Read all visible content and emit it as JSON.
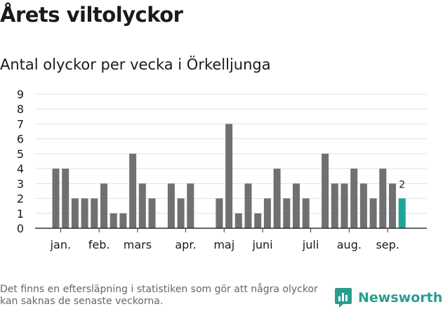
{
  "title": "Årets viltolyckor",
  "subtitle": "Antal olyckor per vecka i Örkelljunga",
  "footnote": "Det finns en eftersläpning i statistiken som gör att några olyckor kan saknas de senaste veckorna.",
  "brand": {
    "name": "Newsworthy",
    "icon": "newsworthy-logo-icon"
  },
  "colors": {
    "bar": "#707073",
    "highlight": "#1ea596",
    "grid": "#e0e0e0",
    "axis": "#333333",
    "text": "#1a1a1a"
  },
  "chart_data": {
    "type": "bar",
    "title": "Antal olyckor per vecka i Örkelljunga",
    "xlabel": "",
    "ylabel": "",
    "ylim": [
      0,
      9
    ],
    "yticks": [
      0,
      1,
      2,
      3,
      4,
      5,
      6,
      7,
      8,
      9
    ],
    "grid": true,
    "x": [
      2,
      3,
      4,
      5,
      6,
      7,
      8,
      9,
      10,
      11,
      12,
      13,
      14,
      15,
      16,
      17,
      18,
      19,
      20,
      21,
      22,
      23,
      24,
      25,
      26,
      27,
      28,
      29,
      30,
      31,
      32,
      33,
      34,
      35,
      36,
      37,
      38
    ],
    "values": [
      4,
      4,
      2,
      2,
      2,
      3,
      1,
      1,
      5,
      3,
      2,
      0,
      3,
      2,
      3,
      0,
      0,
      2,
      7,
      1,
      3,
      1,
      2,
      4,
      2,
      3,
      2,
      0,
      5,
      3,
      3,
      4,
      3,
      2,
      4,
      3,
      2
    ],
    "highlight": {
      "index": 36,
      "label": "2"
    },
    "month_labels": [
      {
        "label": "jan.",
        "week": 2.5
      },
      {
        "label": "feb.",
        "week": 6.5
      },
      {
        "label": "mars",
        "week": 10.5
      },
      {
        "label": "apr.",
        "week": 15.5
      },
      {
        "label": "maj",
        "week": 19.5
      },
      {
        "label": "juni",
        "week": 23.5
      },
      {
        "label": "juli",
        "week": 28.5
      },
      {
        "label": "aug.",
        "week": 32.5
      },
      {
        "label": "sep.",
        "week": 36.5
      }
    ]
  }
}
